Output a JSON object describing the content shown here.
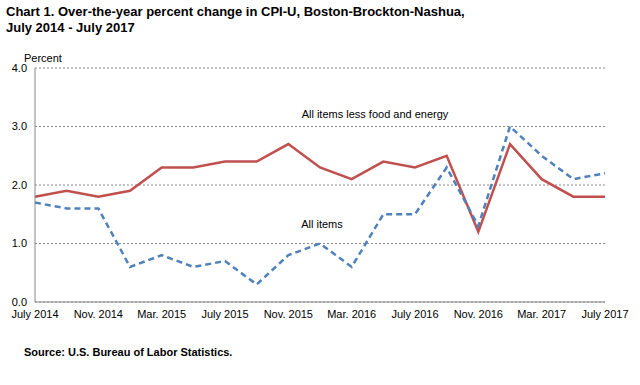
{
  "chart_data": {
    "type": "line",
    "title": [
      "Chart 1.  Over-the-year percent change in CPI-U, Boston-Brockton-Nashua,",
      "July 2014 - July 2017"
    ],
    "ylabel": "Percent",
    "source": "Source: U.S. Bureau of Labor Statistics.",
    "categories": [
      "July 2014",
      null,
      "Nov. 2014",
      null,
      "Mar. 2015",
      null,
      "July 2015",
      null,
      "Nov. 2015",
      null,
      "Mar. 2016",
      null,
      "July 2016",
      null,
      "Nov. 2016",
      null,
      "Mar. 2017",
      null,
      "July 2017"
    ],
    "series": [
      {
        "name": "All items less food and energy",
        "color": "#c0504d",
        "line_style": "solid",
        "marker": "none",
        "values": [
          1.8,
          1.9,
          1.8,
          1.9,
          2.3,
          2.3,
          2.4,
          2.4,
          2.7,
          2.3,
          2.1,
          2.4,
          2.3,
          2.5,
          1.2,
          2.7,
          2.1,
          1.8,
          1.8
        ]
      },
      {
        "name": "All items",
        "color": "#4f81bd",
        "line_style": "dashed",
        "marker": "none",
        "values": [
          1.7,
          1.6,
          1.6,
          0.6,
          0.8,
          0.6,
          0.7,
          0.3,
          0.8,
          1.0,
          0.6,
          1.5,
          1.5,
          2.3,
          1.3,
          3.0,
          2.5,
          2.1,
          2.2
        ]
      }
    ],
    "ylim": [
      0,
      4
    ],
    "yticks": [
      {
        "value": 0,
        "label": "0.0"
      },
      {
        "value": 1,
        "label": "1.0"
      },
      {
        "value": 2,
        "label": "2.0"
      },
      {
        "value": 3,
        "label": "3.0"
      },
      {
        "value": 4,
        "label": "4.0"
      }
    ],
    "grid": true
  }
}
